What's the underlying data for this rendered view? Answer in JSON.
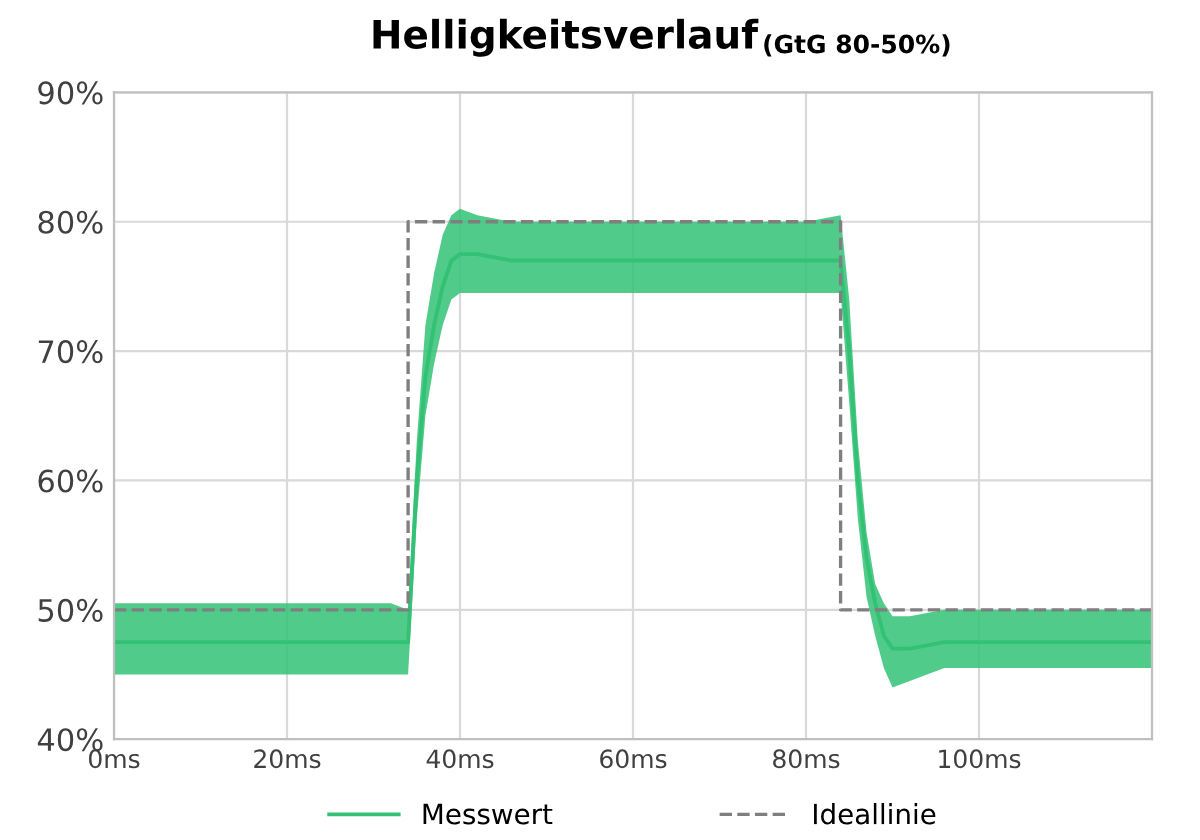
{
  "chart_data": {
    "type": "line",
    "title": "Helligkeitsverlauf",
    "subtitle": "(GtG 80-50%)",
    "xlim": [
      0,
      120
    ],
    "xticks": [
      {
        "value": 0,
        "label": "0ms"
      },
      {
        "value": 20,
        "label": "20ms"
      },
      {
        "value": 40,
        "label": "40ms"
      },
      {
        "value": 60,
        "label": "60ms"
      },
      {
        "value": 80,
        "label": "80ms"
      },
      {
        "value": 100,
        "label": "100ms"
      }
    ],
    "ylim": [
      40,
      90
    ],
    "yticks": [
      {
        "value": 40,
        "label": "40%"
      },
      {
        "value": 50,
        "label": "50%"
      },
      {
        "value": 60,
        "label": "60%"
      },
      {
        "value": 70,
        "label": "70%"
      },
      {
        "value": 80,
        "label": "80%"
      },
      {
        "value": 90,
        "label": "90%"
      }
    ],
    "grid": true,
    "legend": "bottom",
    "series": [
      {
        "name": "Messwert",
        "color": "#33c275",
        "line_style": "solid",
        "x": [
          0,
          4,
          8,
          12,
          16,
          20,
          24,
          28,
          32,
          34,
          35,
          36,
          37,
          38,
          39,
          40,
          42,
          46,
          50,
          55,
          60,
          65,
          70,
          75,
          80,
          84,
          85,
          86,
          87,
          88,
          89,
          90,
          92,
          96,
          100,
          105,
          110,
          115,
          120
        ],
        "values": [
          47.5,
          47.5,
          47.5,
          47.5,
          47.5,
          47.5,
          47.5,
          47.5,
          47.5,
          47.5,
          60,
          68,
          72,
          75,
          77,
          77.5,
          77.5,
          77,
          77,
          77,
          77,
          77,
          77,
          77,
          77,
          77,
          70,
          60,
          54,
          50.5,
          48,
          47,
          47,
          47.5,
          47.5,
          47.5,
          47.5,
          47.5,
          47.5
        ],
        "lower": [
          45,
          45,
          45,
          45,
          45,
          45,
          45,
          45,
          45,
          45,
          57,
          65,
          69,
          72,
          74,
          74.5,
          74.5,
          74.5,
          74.5,
          74.5,
          74.5,
          74.5,
          74.5,
          74.5,
          74.5,
          74.5,
          66,
          57,
          51,
          48,
          45.5,
          44,
          44.5,
          45.5,
          45.5,
          45.5,
          45.5,
          45.5,
          45.5
        ],
        "upper": [
          50.5,
          50.5,
          50.5,
          50.5,
          50.5,
          50.5,
          50.5,
          50.5,
          50.5,
          50,
          63,
          72,
          76,
          79,
          80.5,
          81,
          80.5,
          80,
          80,
          80,
          80,
          80,
          80,
          80,
          80,
          80.5,
          74,
          63,
          56,
          52,
          50.5,
          49.5,
          49.5,
          50,
          50,
          50,
          50,
          50,
          50
        ]
      },
      {
        "name": "Ideallinie",
        "color": "#7f7f7f",
        "line_style": "dashed",
        "x": [
          0,
          34,
          34,
          84,
          84,
          120
        ],
        "values": [
          50,
          50,
          80,
          80,
          50,
          50
        ]
      }
    ]
  }
}
